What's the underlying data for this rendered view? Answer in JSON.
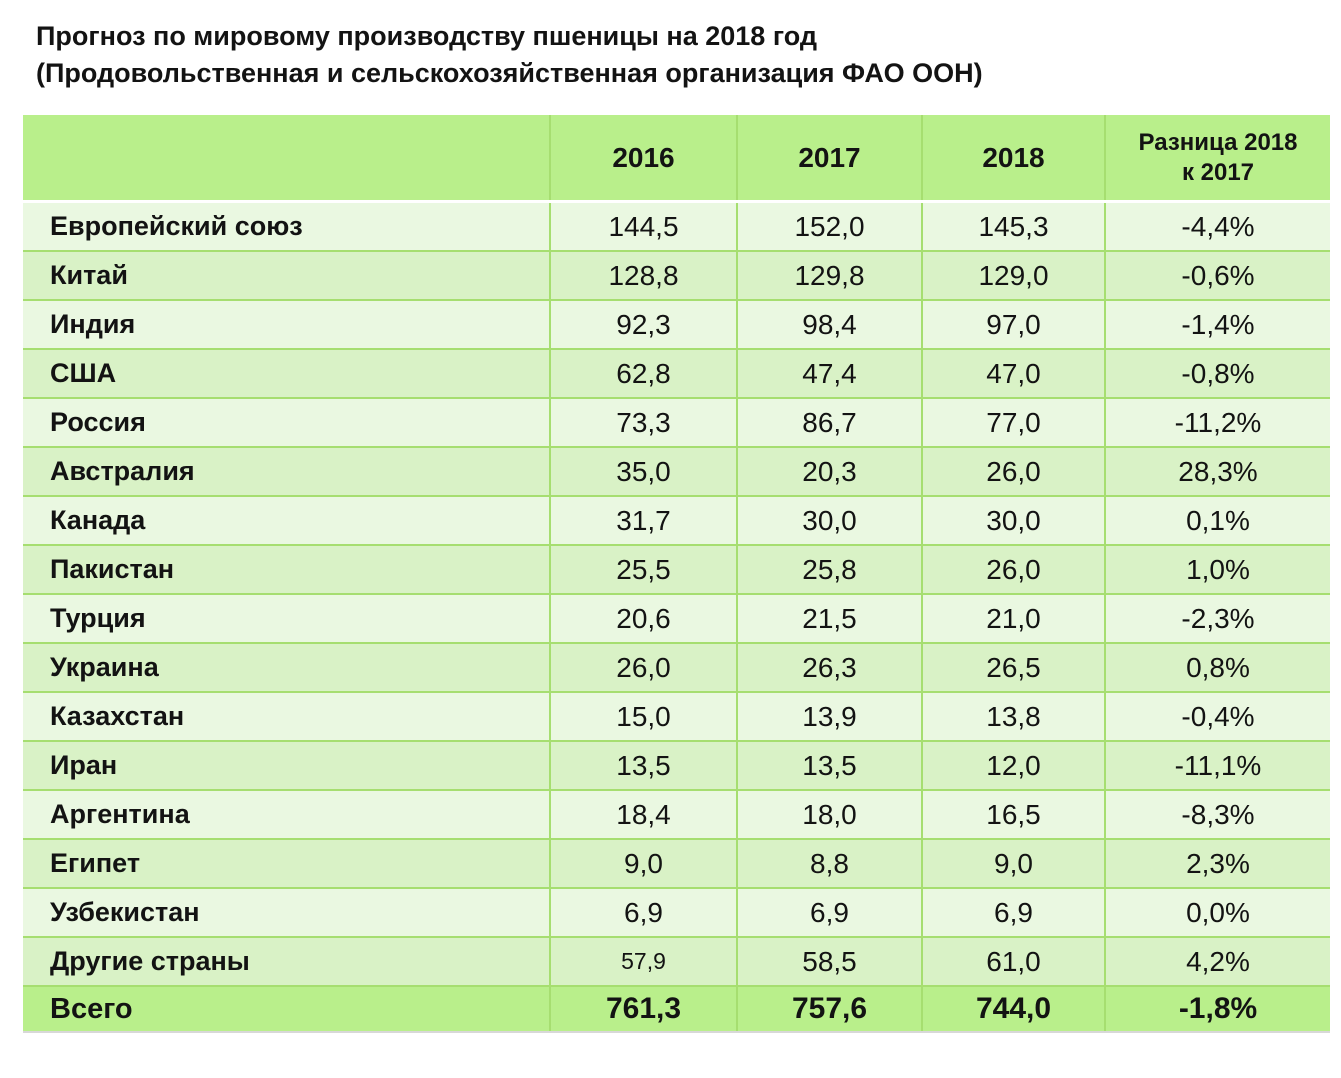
{
  "title": {
    "line1": "Прогноз по мировому производству пшеницы на 2018 год",
    "line2": "(Продовольственная и сельскохозяйственная организация ФАО ООН)"
  },
  "colors": {
    "header_bg": "#b9ef8b",
    "row_light": "#eaf8e1",
    "row_dark": "#d9f2c6",
    "grid_border": "#a6de70",
    "total_bg": "#b9ef8b",
    "text": "#131313"
  },
  "chart_data": {
    "type": "table",
    "title": "Прогноз по мировому производству пшеницы на 2018 год (Продовольственная и сельскохозяйственная организация ФАО ООН)",
    "header": {
      "country": "",
      "y2016": "2016",
      "y2017": "2017",
      "y2018": "2018",
      "diff_line1": "Разница 2018",
      "diff_line2": "к 2017"
    },
    "columns": [
      "",
      "2016",
      "2017",
      "2018",
      "Разница 2018 к 2017"
    ],
    "rows": [
      {
        "name": "Европейский союз",
        "values": [
          "144,5",
          "152,0",
          "145,3",
          "-4,4%"
        ]
      },
      {
        "name": "Китай",
        "values": [
          "128,8",
          "129,8",
          "129,0",
          "-0,6%"
        ]
      },
      {
        "name": "Индия",
        "values": [
          "92,3",
          "98,4",
          "97,0",
          "-1,4%"
        ]
      },
      {
        "name": "США",
        "values": [
          "62,8",
          "47,4",
          "47,0",
          "-0,8%"
        ]
      },
      {
        "name": "Россия",
        "values": [
          "73,3",
          "86,7",
          "77,0",
          "-11,2%"
        ]
      },
      {
        "name": "Австралия",
        "values": [
          "35,0",
          "20,3",
          "26,0",
          "28,3%"
        ]
      },
      {
        "name": "Канада",
        "values": [
          "31,7",
          "30,0",
          "30,0",
          "0,1%"
        ]
      },
      {
        "name": "Пакистан",
        "values": [
          "25,5",
          "25,8",
          "26,0",
          "1,0%"
        ]
      },
      {
        "name": "Турция",
        "values": [
          "20,6",
          "21,5",
          "21,0",
          "-2,3%"
        ]
      },
      {
        "name": "Украина",
        "values": [
          "26,0",
          "26,3",
          "26,5",
          "0,8%"
        ]
      },
      {
        "name": "Казахстан",
        "values": [
          "15,0",
          "13,9",
          "13,8",
          "-0,4%"
        ]
      },
      {
        "name": "Иран",
        "values": [
          "13,5",
          "13,5",
          "12,0",
          "-11,1%"
        ]
      },
      {
        "name": "Аргентина",
        "values": [
          "18,4",
          "18,0",
          "16,5",
          "-8,3%"
        ]
      },
      {
        "name": "Египет",
        "values": [
          "9,0",
          "8,8",
          "9,0",
          "2,3%"
        ]
      },
      {
        "name": "Узбекистан",
        "values": [
          "6,9",
          "6,9",
          "6,9",
          "0,0%"
        ]
      },
      {
        "name": "Другие страны",
        "values": [
          "57,9",
          "58,5",
          "61,0",
          "4,2%"
        ],
        "shrink": [
          0
        ]
      }
    ],
    "total": {
      "name": "Всего",
      "values": [
        "761,3",
        "757,6",
        "744,0",
        "-1,8%"
      ]
    }
  }
}
